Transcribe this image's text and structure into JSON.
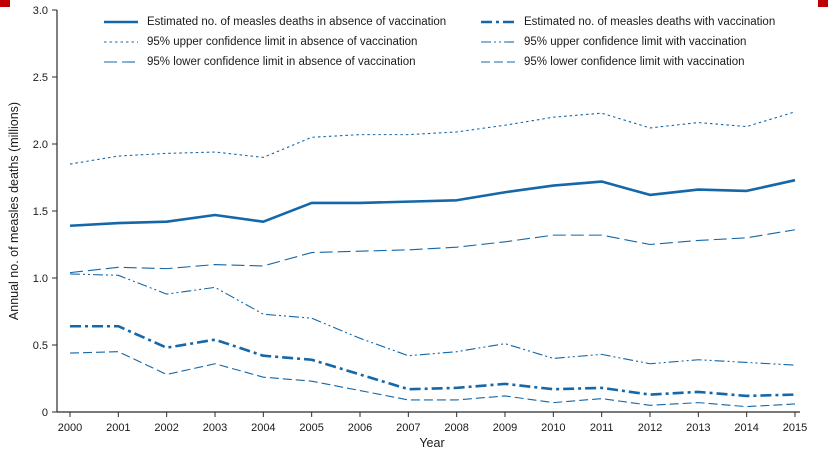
{
  "figure": {
    "ylabel": "Annual no. of measles deaths (millions)",
    "xlabel": "Year"
  },
  "chart_data": {
    "type": "line",
    "x": [
      2000,
      2001,
      2002,
      2003,
      2004,
      2005,
      2006,
      2007,
      2008,
      2009,
      2010,
      2011,
      2012,
      2013,
      2014,
      2015
    ],
    "x_tick_labels": [
      "2000",
      "2001",
      "2002",
      "2003",
      "2004",
      "2005",
      "2006",
      "2007",
      "2008",
      "2009",
      "2010",
      "2011",
      "2012",
      "2013",
      "2014",
      "2015"
    ],
    "ylim": [
      0,
      3.0
    ],
    "y_ticks": [
      0,
      0.5,
      1.0,
      1.5,
      2.0,
      2.5,
      3.0
    ],
    "y_tick_labels": [
      "0",
      "0.5",
      "1.0",
      "1.5",
      "2.0",
      "2.5",
      "3.0"
    ],
    "xlabel": "Year",
    "ylabel": "Annual no. of measles deaths (millions)",
    "grid": false,
    "legend_position": "top-inside",
    "line_color": "#1467a8",
    "axis_color": "#2b2b2b",
    "corner_mark_color": "#c00000",
    "series": [
      {
        "name": "Estimated no. of measles deaths in absence of vaccination",
        "line_style": "solid-thick",
        "values": [
          1.39,
          1.41,
          1.42,
          1.47,
          1.42,
          1.56,
          1.56,
          1.57,
          1.58,
          1.64,
          1.69,
          1.72,
          1.62,
          1.66,
          1.65,
          1.73
        ]
      },
      {
        "name": "95% upper confidence limit in absence of vaccination",
        "line_style": "dotted",
        "values": [
          1.85,
          1.91,
          1.93,
          1.94,
          1.9,
          2.05,
          2.07,
          2.07,
          2.09,
          2.14,
          2.2,
          2.23,
          2.12,
          2.16,
          2.13,
          2.24
        ]
      },
      {
        "name": "95% lower confidence limit in absence of vaccination",
        "line_style": "long-dash",
        "values": [
          1.04,
          1.08,
          1.07,
          1.1,
          1.09,
          1.19,
          1.2,
          1.21,
          1.23,
          1.27,
          1.32,
          1.32,
          1.25,
          1.28,
          1.3,
          1.36
        ]
      },
      {
        "name": "Estimated no. of measles deaths with vaccination",
        "line_style": "dash-dot-thick",
        "values": [
          0.64,
          0.64,
          0.48,
          0.54,
          0.42,
          0.39,
          0.28,
          0.17,
          0.18,
          0.21,
          0.17,
          0.18,
          0.13,
          0.15,
          0.12,
          0.13
        ]
      },
      {
        "name": "95% upper confidence limit with vaccination",
        "line_style": "dash-dot-dot",
        "values": [
          1.03,
          1.02,
          0.88,
          0.93,
          0.73,
          0.7,
          0.55,
          0.42,
          0.45,
          0.51,
          0.4,
          0.43,
          0.36,
          0.39,
          0.37,
          0.35
        ]
      },
      {
        "name": "95% lower confidence limit with vaccination",
        "line_style": "dash",
        "values": [
          0.44,
          0.45,
          0.28,
          0.36,
          0.26,
          0.23,
          0.16,
          0.09,
          0.09,
          0.12,
          0.07,
          0.1,
          0.05,
          0.07,
          0.04,
          0.06
        ]
      }
    ]
  }
}
